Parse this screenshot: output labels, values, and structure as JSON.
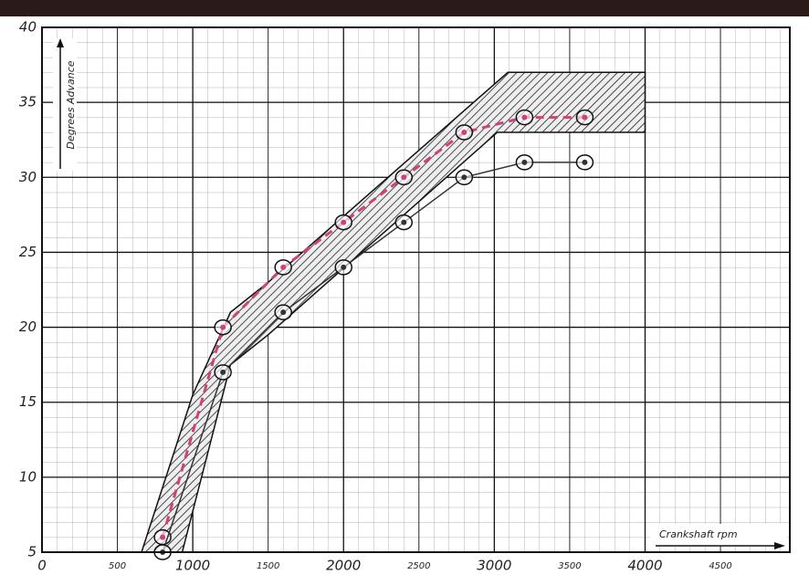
{
  "chart_data": {
    "type": "line",
    "y_label": "Degrees Advance",
    "x_label": "Crankshaft rpm",
    "x": [
      800,
      1200,
      1600,
      2000,
      2400,
      2800,
      3200,
      3600
    ],
    "series": [
      {
        "color": "#d0407a",
        "dashed": true,
        "values": [
          6,
          20,
          24,
          27,
          30,
          33,
          34,
          34
        ]
      },
      {
        "color": "#333333",
        "dashed": false,
        "values": [
          5,
          17,
          21,
          24,
          27,
          30,
          31,
          31
        ]
      }
    ],
    "band": {
      "upper": {
        "x": [
          660,
          1000,
          1250,
          1500,
          3090,
          4000
        ],
        "y": [
          5,
          15.5,
          21,
          23,
          37,
          37
        ]
      },
      "lower": {
        "x": [
          930,
          1250,
          1500,
          3020,
          4000
        ],
        "y": [
          5,
          17.5,
          19.5,
          33,
          33
        ]
      }
    },
    "xlim": [
      0,
      4960
    ],
    "ylim": [
      5,
      40
    ],
    "xticks": [
      0,
      500,
      1000,
      1500,
      2000,
      2500,
      3000,
      3500,
      4000,
      4500
    ],
    "yticks": [
      5,
      10,
      15,
      20,
      25,
      30,
      35,
      40
    ],
    "grid": true
  }
}
